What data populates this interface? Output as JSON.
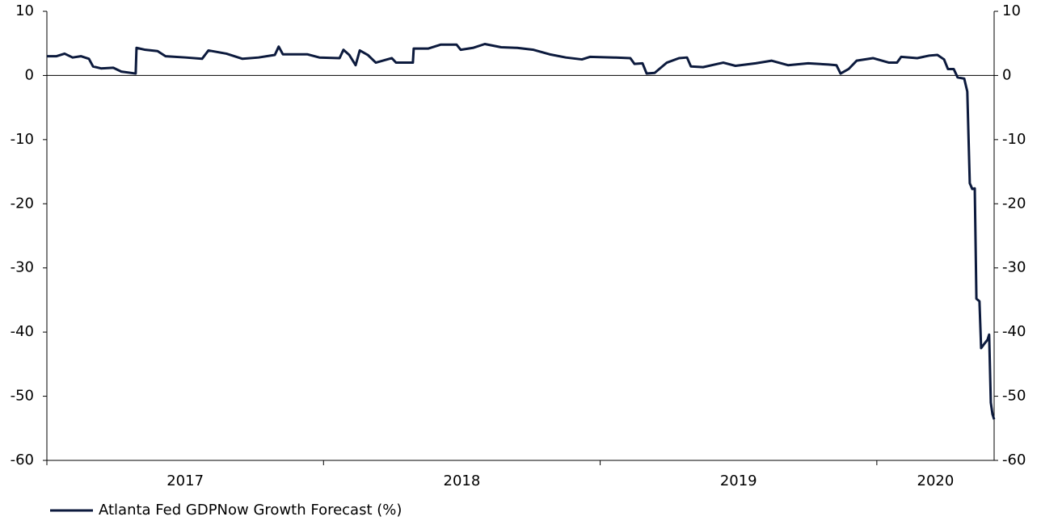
{
  "chart_data": {
    "type": "line",
    "xlim": [
      2017,
      2020.424
    ],
    "xticks": [
      2017,
      2018,
      2019,
      2020
    ],
    "ylim": [
      -60,
      10
    ],
    "yticks": [
      -60,
      -50,
      -40,
      -30,
      -20,
      -10,
      0,
      10
    ],
    "y2lim": [
      -60,
      10
    ],
    "y2ticks": [
      -60,
      -50,
      -40,
      -30,
      -20,
      -10,
      0,
      10
    ],
    "legend": "bottom-left",
    "x": [
      2017.0,
      2017.035,
      2017.064,
      2017.093,
      2017.123,
      2017.152,
      2017.167,
      2017.196,
      2017.24,
      2017.269,
      2017.321,
      2017.324,
      2017.356,
      2017.4,
      2017.429,
      2017.502,
      2017.561,
      2017.584,
      2017.649,
      2017.707,
      2017.765,
      2017.824,
      2017.838,
      2017.853,
      2017.941,
      2017.985,
      2018.058,
      2018.072,
      2018.093,
      2018.116,
      2018.131,
      2018.16,
      2018.189,
      2018.247,
      2018.262,
      2018.323,
      2018.326,
      2018.379,
      2018.423,
      2018.481,
      2018.496,
      2018.54,
      2018.583,
      2018.642,
      2018.7,
      2018.759,
      2018.817,
      2018.876,
      2018.934,
      2018.963,
      2019.051,
      2019.109,
      2019.124,
      2019.153,
      2019.168,
      2019.197,
      2019.241,
      2019.285,
      2019.314,
      2019.328,
      2019.372,
      2019.445,
      2019.489,
      2019.562,
      2019.62,
      2019.679,
      2019.752,
      2019.825,
      2019.854,
      2019.869,
      2019.898,
      2019.927,
      2019.986,
      2020.044,
      2020.073,
      2020.088,
      2020.146,
      2020.19,
      2020.219,
      2020.243,
      2020.257,
      2020.278,
      2020.292,
      2020.316,
      2020.327,
      2020.336,
      2020.345,
      2020.354,
      2020.36,
      2020.371,
      2020.377,
      2020.389,
      2020.4,
      2020.406,
      2020.412,
      2020.418,
      2020.424
    ],
    "series": [
      {
        "name": "Atlanta Fed GDPNow Growth Forecast (%)",
        "color": "#0c1a3d",
        "values": [
          3.0,
          3.0,
          3.4,
          2.8,
          3.0,
          2.6,
          1.4,
          1.1,
          1.2,
          0.6,
          0.3,
          4.3,
          4.0,
          3.8,
          3.0,
          2.8,
          2.6,
          3.9,
          3.4,
          2.6,
          2.8,
          3.2,
          4.5,
          3.3,
          3.3,
          2.8,
          2.7,
          4.0,
          3.2,
          1.6,
          3.9,
          3.2,
          2.0,
          2.7,
          2.0,
          2.0,
          4.2,
          4.2,
          4.8,
          4.8,
          4.0,
          4.3,
          4.9,
          4.4,
          4.3,
          4.0,
          3.3,
          2.8,
          2.5,
          2.9,
          2.8,
          2.7,
          1.8,
          1.9,
          0.3,
          0.4,
          2.0,
          2.7,
          2.8,
          1.4,
          1.3,
          2.0,
          1.5,
          1.9,
          2.3,
          1.6,
          1.9,
          1.7,
          1.6,
          0.3,
          1.0,
          2.3,
          2.7,
          2.0,
          2.0,
          2.9,
          2.7,
          3.1,
          3.2,
          2.5,
          1.0,
          1.0,
          -0.3,
          -0.5,
          -2.5,
          -16.8,
          -17.7,
          -17.6,
          -34.8,
          -35.2,
          -42.5,
          -41.8,
          -41.2,
          -40.4,
          -51.0,
          -52.8,
          -53.6
        ]
      }
    ]
  }
}
